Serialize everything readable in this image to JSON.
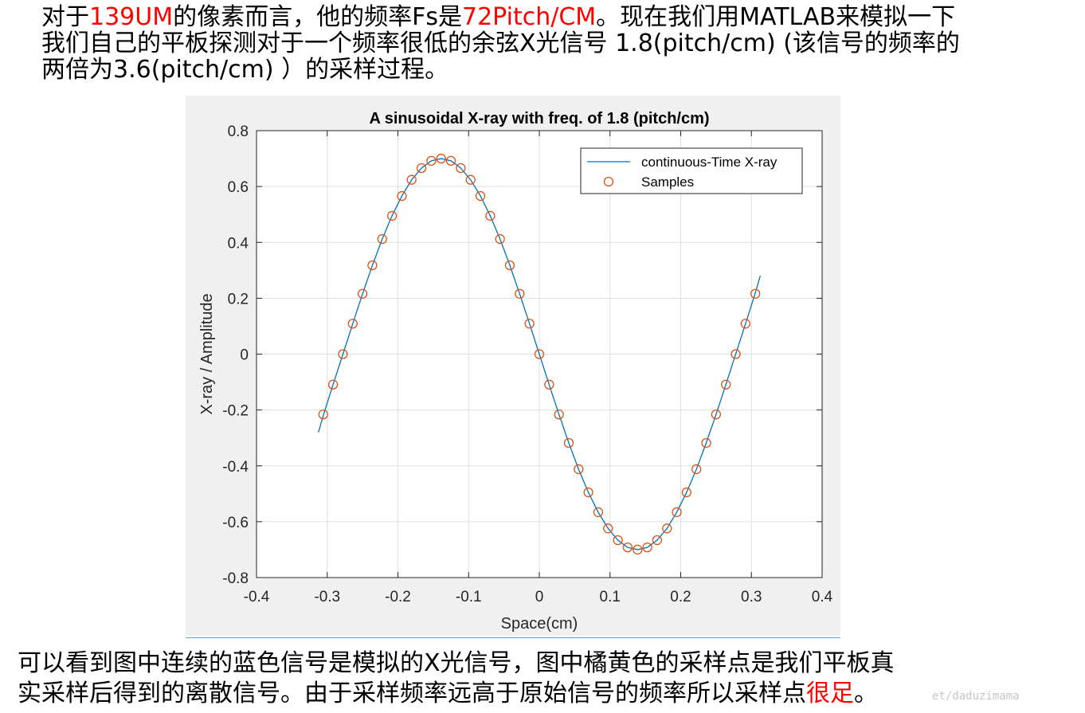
{
  "intro": {
    "line1": [
      {
        "text": "对于",
        "hl": false
      },
      {
        "text": "139UM",
        "hl": true
      },
      {
        "text": "的像素而言，他的频率Fs是",
        "hl": false
      },
      {
        "text": "72Pitch/CM",
        "hl": true
      },
      {
        "text": "。现在我们用MATLAB来模拟一下",
        "hl": false
      }
    ],
    "line2": "我们自己的平板探测对于一个频率很低的余弦X光信号 1.8(pitch/cm) (该信号的频率的",
    "line3": "两倍为3.6(pitch/cm) ）的采样过程。"
  },
  "outro": {
    "line1": "可以看到图中连续的蓝色信号是模拟的X光信号，图中橘黄色的采样点是我们平板真",
    "line2_pre": "实采样后得到的离散信号。由于采样频率远高于原始信号的频率所以采样点",
    "line2_hl": "很足",
    "line2_post": "。"
  },
  "watermark": "et/daduzimama",
  "colors": {
    "highlight": "#ff0000",
    "line": "#0072bd",
    "marker": "#d95319",
    "grid": "#dfdfdf",
    "figure_bg": "#f0f0f0"
  },
  "chart_data": {
    "type": "line",
    "title": "A sinusoidal X-ray with freq. of 1.8 (pitch/cm)",
    "xlabel": "Space(cm)",
    "ylabel": "X-ray / Amplitude",
    "xlim": [
      -0.4,
      0.4
    ],
    "ylim": [
      -0.8,
      0.8
    ],
    "xticks": [
      "-0.4",
      "-0.3",
      "-0.2",
      "-0.1",
      "0",
      "0.1",
      "0.2",
      "0.3",
      "0.4"
    ],
    "yticks": [
      "0.8",
      "0.6",
      "0.4",
      "0.2",
      "0",
      "-0.2",
      "-0.4",
      "-0.6",
      "-0.8"
    ],
    "grid": true,
    "legend_position": "top-right",
    "series": [
      {
        "name": "continuous-Time X-ray",
        "style": "line",
        "x": [
          -0.3125,
          -0.305,
          -0.2917,
          -0.2778,
          -0.2639,
          -0.25,
          -0.2361,
          -0.2222,
          -0.2083,
          -0.1944,
          -0.1806,
          -0.1667,
          -0.1528,
          -0.1389,
          -0.125,
          -0.1111,
          -0.0972,
          -0.0833,
          -0.0694,
          -0.0556,
          -0.0417,
          -0.0278,
          -0.0139,
          0,
          0.0139,
          0.0278,
          0.0417,
          0.0556,
          0.0694,
          0.0833,
          0.0972,
          0.1111,
          0.125,
          0.1389,
          0.1528,
          0.1667,
          0.1806,
          0.1944,
          0.2083,
          0.2222,
          0.2361,
          0.25,
          0.2639,
          0.2778,
          0.2917,
          0.305,
          0.3125
        ],
        "y": [
          -0.28,
          -0.215,
          -0.109,
          0,
          0.109,
          0.216,
          0.318,
          0.412,
          0.495,
          0.566,
          0.624,
          0.666,
          0.692,
          0.7,
          0.692,
          0.666,
          0.624,
          0.566,
          0.495,
          0.412,
          0.318,
          0.216,
          0.109,
          0,
          -0.109,
          -0.216,
          -0.318,
          -0.412,
          -0.495,
          -0.566,
          -0.624,
          -0.666,
          -0.692,
          -0.7,
          -0.692,
          -0.666,
          -0.624,
          -0.566,
          -0.495,
          -0.412,
          -0.318,
          -0.216,
          -0.109,
          0,
          0.109,
          0.215,
          0.28
        ]
      },
      {
        "name": "Samples",
        "style": "markers",
        "x": [
          -0.3056,
          -0.2917,
          -0.2778,
          -0.2639,
          -0.25,
          -0.2361,
          -0.2222,
          -0.2083,
          -0.1944,
          -0.1806,
          -0.1667,
          -0.1528,
          -0.1389,
          -0.125,
          -0.1111,
          -0.0972,
          -0.0833,
          -0.0694,
          -0.0556,
          -0.0417,
          -0.0278,
          -0.0139,
          0,
          0.0139,
          0.0278,
          0.0417,
          0.0556,
          0.0694,
          0.0833,
          0.0972,
          0.1111,
          0.125,
          0.1389,
          0.1528,
          0.1667,
          0.1806,
          0.1944,
          0.2083,
          0.2222,
          0.2361,
          0.25,
          0.2639,
          0.2778,
          0.2917,
          0.3056
        ],
        "y": [
          -0.216,
          -0.109,
          0,
          0.109,
          0.216,
          0.318,
          0.412,
          0.495,
          0.566,
          0.624,
          0.666,
          0.692,
          0.7,
          0.692,
          0.666,
          0.624,
          0.566,
          0.495,
          0.412,
          0.318,
          0.216,
          0.109,
          0,
          -0.109,
          -0.216,
          -0.318,
          -0.412,
          -0.495,
          -0.566,
          -0.624,
          -0.666,
          -0.692,
          -0.7,
          -0.692,
          -0.666,
          -0.624,
          -0.566,
          -0.495,
          -0.412,
          -0.318,
          -0.216,
          -0.109,
          0,
          0.109,
          0.216
        ]
      }
    ]
  }
}
